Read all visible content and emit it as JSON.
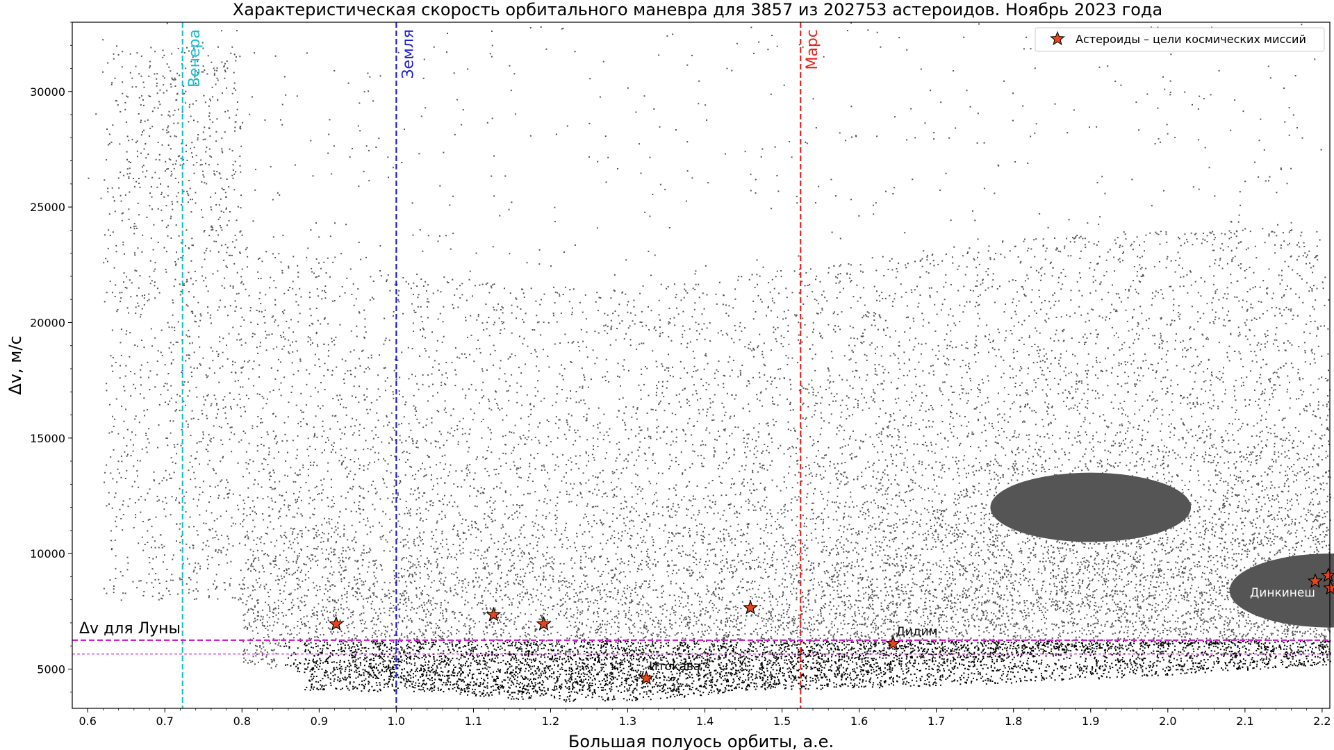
{
  "chart_data": {
    "type": "scatter",
    "title": "Характеристическая скорость орбитального маневра для 3857 из 202753 астероидов. Ноябрь 2023 года",
    "xlabel": "Большая полуось орбиты, а.е.",
    "ylabel": "Δv, м/с",
    "xlim": [
      0.58,
      2.21
    ],
    "ylim": [
      3300,
      33000
    ],
    "xticks": [
      "0.6",
      "0.7",
      "0.8",
      "0.9",
      "1.0",
      "1.1",
      "1.2",
      "1.3",
      "1.4",
      "1.5",
      "1.6",
      "1.7",
      "1.8",
      "1.9",
      "2.0",
      "2.1",
      "2.2"
    ],
    "yticks": [
      "5000",
      "10000",
      "15000",
      "20000",
      "25000",
      "30000"
    ],
    "grid": false,
    "legend": {
      "placement": "top-right",
      "label": "Астероиды – цели космических миссий"
    },
    "vertical_lines": [
      {
        "label": "Венера",
        "x": 0.723,
        "color": "#17becf"
      },
      {
        "label": "Земля",
        "x": 1.0,
        "color": "#1f1fd6"
      },
      {
        "label": "Марс",
        "x": 1.524,
        "color": "#e8211c"
      }
    ],
    "horizontal_lines": [
      {
        "label": "Δv для Луны",
        "y": 6250,
        "color": "#cc22cc",
        "style": "dashed-thick"
      },
      {
        "label": "",
        "y": 5650,
        "color": "#cc22cc",
        "style": "dashed-thin"
      }
    ],
    "series": [
      {
        "name": "Астероиды – цели космических миссий",
        "marker": "star",
        "color": "#e8461c",
        "points": [
          {
            "x": 0.922,
            "y": 6950,
            "label": ""
          },
          {
            "x": 1.126,
            "y": 7350,
            "label": ""
          },
          {
            "x": 1.191,
            "y": 6950,
            "label": ""
          },
          {
            "x": 1.324,
            "y": 4600,
            "label": "Итокава"
          },
          {
            "x": 1.459,
            "y": 7650,
            "label": ""
          },
          {
            "x": 1.644,
            "y": 6100,
            "label": "Дидим"
          },
          {
            "x": 2.191,
            "y": 8800,
            "label": "Динкинеш"
          },
          {
            "x": 2.208,
            "y": 9050,
            "label": ""
          },
          {
            "x": 2.211,
            "y": 8500,
            "label": ""
          }
        ]
      }
    ],
    "background_population": {
      "color": "#555555",
      "below_moon_line_color": "#000000",
      "dense_clusters": [
        {
          "x_center": 1.9,
          "y_center": 12000,
          "x_halfwidth": 0.13,
          "y_halfwidth": 1500
        },
        {
          "x_center": 2.21,
          "y_center": 8400,
          "x_halfwidth": 0.13,
          "y_halfwidth": 1600
        }
      ]
    }
  }
}
